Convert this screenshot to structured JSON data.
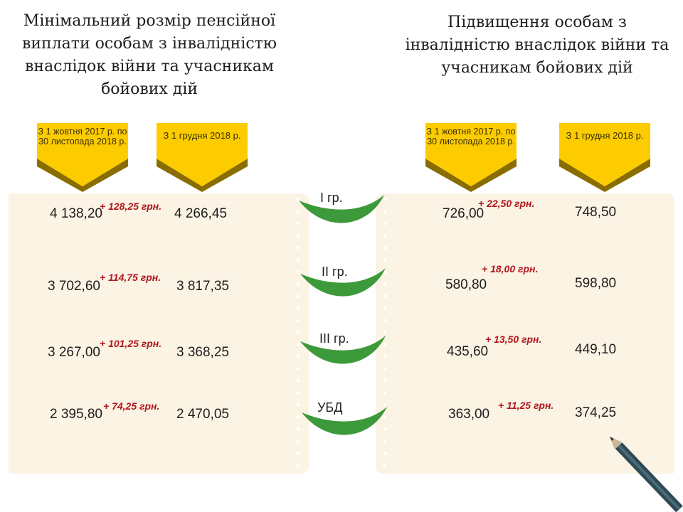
{
  "left": {
    "title": "Мінімальний розмір пенсійної виплати особам з інвалідністю внаслідок війни та учасникам бойових дій",
    "col1_header": "З 1 жовтня 2017 р. по 30 листопада 2018 р.",
    "col2_header": "З 1 грудня 2018 р.",
    "rows": [
      {
        "from": "4 138,20",
        "increase": "+ 128,25 грн.",
        "to": "4 266,45"
      },
      {
        "from": "3 702,60",
        "increase": "+ 114,75 грн.",
        "to": "3 817,35"
      },
      {
        "from": "3 267,00",
        "increase": "+ 101,25 грн.",
        "to": "3 368,25"
      },
      {
        "from": "2 395,80",
        "increase": "+ 74,25 грн.",
        "to": "2 470,05"
      }
    ]
  },
  "right": {
    "title": "Підвищення особам з інвалідністю внаслідок війни та учасникам бойових дій",
    "col1_header": "З 1 жовтня 2017 р. по 30 листопада 2018 р.",
    "col2_header": "З 1 грудня 2018 р.",
    "rows": [
      {
        "from": "726,00",
        "increase": "+ 22,50 грн.",
        "to": "748,50"
      },
      {
        "from": "580,80",
        "increase": "+ 18,00 грн.",
        "to": "598,80"
      },
      {
        "from": "435,60",
        "increase": "+ 13,50 грн.",
        "to": "449,10"
      },
      {
        "from": "363,00",
        "increase": "+ 11,25 грн.",
        "to": "374,25"
      }
    ]
  },
  "groups": [
    "I гр.",
    "II гр.",
    "III гр.",
    "УБД"
  ],
  "colors": {
    "banner": "#fccc00",
    "banner_shadow": "#8a6d00",
    "panel": "#fbf3e4",
    "leaf": "#3d9a3a",
    "increase": "#b0161c"
  }
}
